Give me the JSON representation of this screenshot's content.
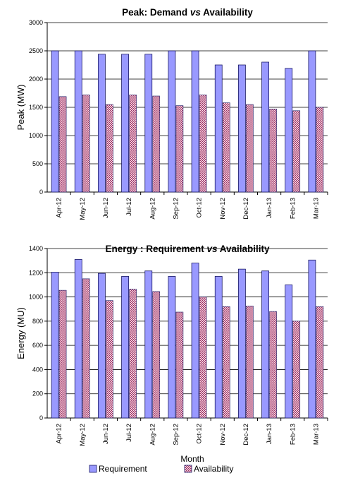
{
  "colors": {
    "requirement_fill": "#9999ff",
    "requirement_stroke": "#1a1a66",
    "availability_fill": "#ffe0e8",
    "availability_pattern": "#993366",
    "grid": "#000000",
    "background": "#ffffff"
  },
  "chart_data": [
    {
      "type": "bar",
      "title_parts": [
        "Peak: Demand ",
        "vs",
        " Availability"
      ],
      "ylabel": "Peak (MW)",
      "xlabel": "",
      "ylim": [
        0,
        3000
      ],
      "yticks": [
        0,
        500,
        1000,
        1500,
        2000,
        2500,
        3000
      ],
      "grid": true,
      "categories": [
        "Apr-12",
        "May-12",
        "Jun-12",
        "Jul-12",
        "Aug-12",
        "Sep-12",
        "Oct-12",
        "Nov-12",
        "Dec-12",
        "Jan-13",
        "Feb-13",
        "Mar-13"
      ],
      "series": [
        {
          "name": "Requirement",
          "values": [
            2500,
            2500,
            2440,
            2440,
            2440,
            2500,
            2500,
            2250,
            2250,
            2300,
            2190,
            2500
          ]
        },
        {
          "name": "Availability",
          "values": [
            1690,
            1720,
            1550,
            1720,
            1700,
            1530,
            1720,
            1580,
            1550,
            1470,
            1440,
            1500
          ]
        }
      ]
    },
    {
      "type": "bar",
      "title_parts": [
        "Energy :  Requirement ",
        "vs",
        " Availability"
      ],
      "ylabel": "Energy (MU)",
      "xlabel": "Month",
      "ylim": [
        0,
        1400
      ],
      "yticks": [
        0,
        200,
        400,
        600,
        800,
        1000,
        1200,
        1400
      ],
      "grid": true,
      "categories": [
        "Apr-12",
        "May-12",
        "Jun-12",
        "Jul-12",
        "Aug-12",
        "Sep-12",
        "Oct-12",
        "Nov-12",
        "Dec-12",
        "Jan-13",
        "Feb-13",
        "Mar-13"
      ],
      "series": [
        {
          "name": "Requirement",
          "values": [
            1205,
            1310,
            1195,
            1170,
            1215,
            1170,
            1280,
            1170,
            1230,
            1215,
            1100,
            1305
          ]
        },
        {
          "name": "Availability",
          "values": [
            1055,
            1150,
            970,
            1065,
            1045,
            875,
            1000,
            920,
            925,
            880,
            800,
            920
          ]
        }
      ]
    }
  ],
  "legend": {
    "position": "bottom",
    "items": [
      "Requirement",
      "Availability"
    ]
  }
}
